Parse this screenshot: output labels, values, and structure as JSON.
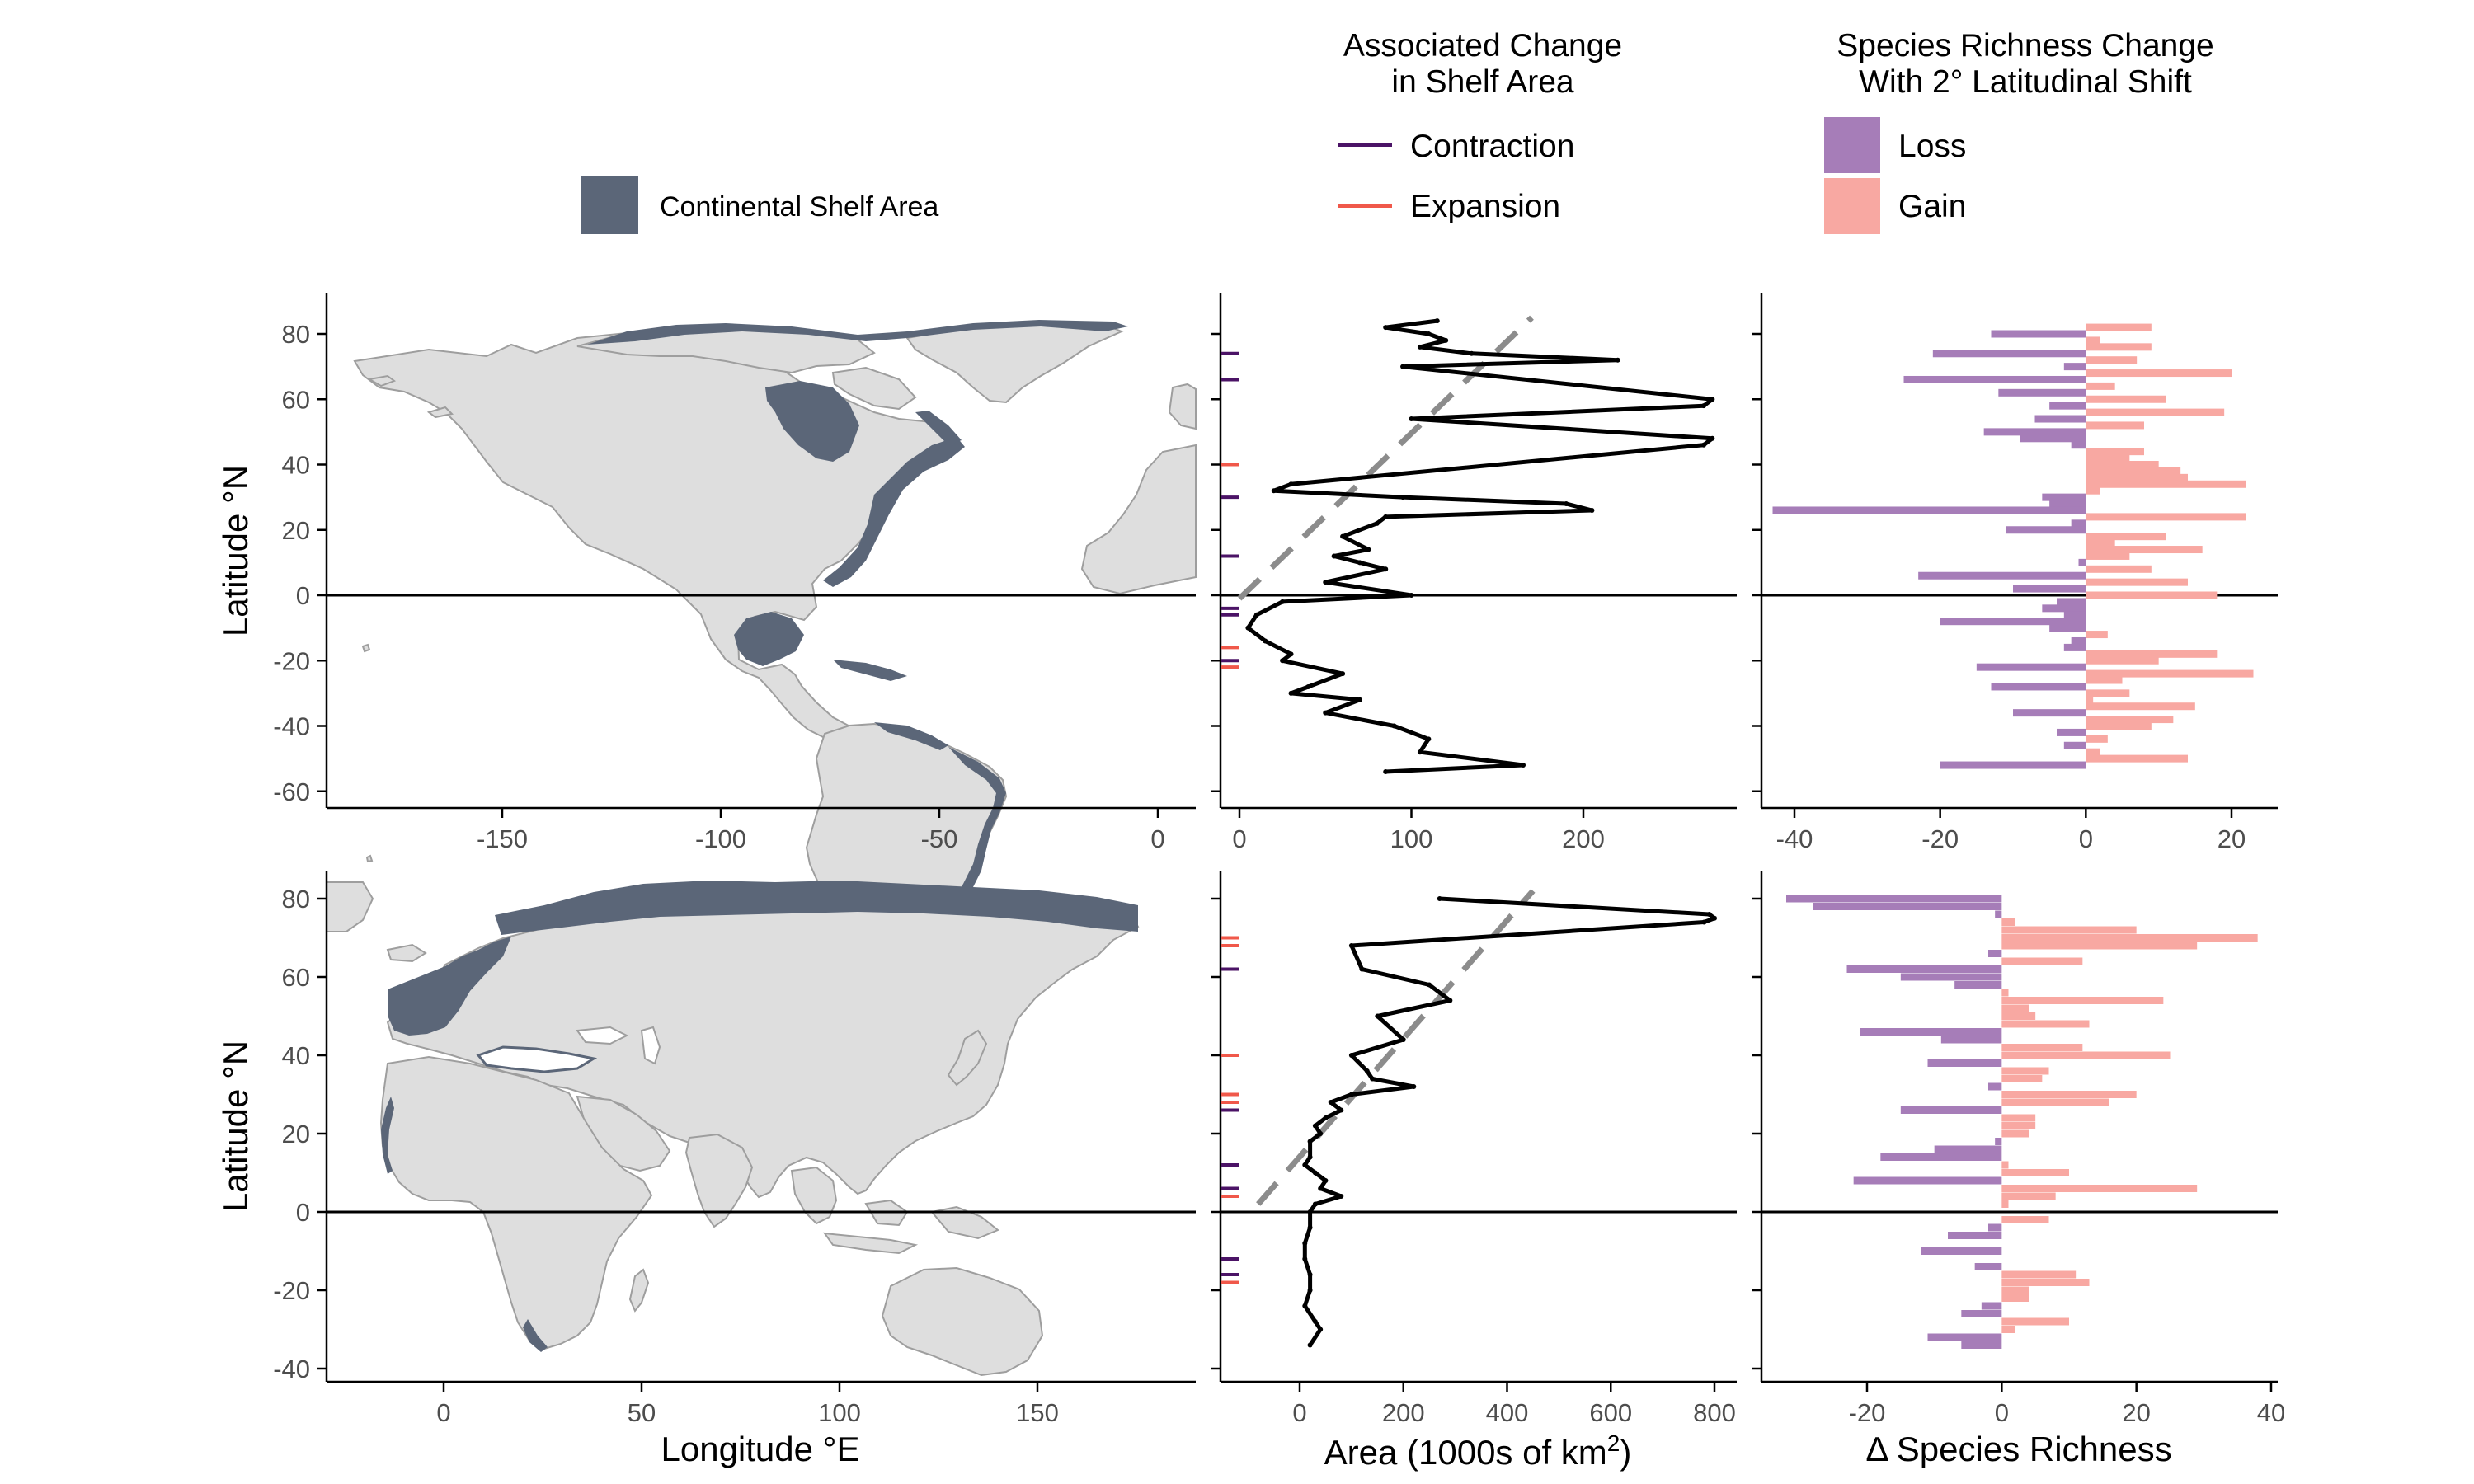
{
  "legend": {
    "shelf_label": "Continental Shelf Area",
    "change_title_line1": "Associated Change",
    "change_title_line2": "in Shelf Area",
    "contraction_label": "Contraction",
    "expansion_label": "Expansion",
    "richness_title_line1": "Species Richness Change",
    "richness_title_line2": "With 2° Latitudinal Shift",
    "loss_label": "Loss",
    "gain_label": "Gain"
  },
  "axes": {
    "latitude_label": "Latitude °N",
    "longitude_label": "Longitude °E",
    "area_label_main": "Area (1000s of km",
    "area_label_sup": "2",
    "area_label_end": ")",
    "richness_label": "Δ Species Richness"
  },
  "colors": {
    "shelf": "#5b6678",
    "land": "#dedede",
    "contraction": "#4b1366",
    "expansion": "#f0584a",
    "loss": "#a67db8",
    "gain": "#f8a8a2",
    "trend": "#8c8c8c"
  },
  "chart_data": [
    {
      "type": "map",
      "panel": "Americas",
      "xlabel": "",
      "ylabel": "Latitude °N",
      "xticks": [
        -150,
        -100,
        -50,
        0
      ],
      "yticks": [
        -60,
        -40,
        -20,
        0,
        20,
        40,
        60,
        80
      ],
      "xlim": [
        -185,
        9
      ],
      "ylim": [
        -62,
        92
      ]
    },
    {
      "type": "line",
      "panel": "Americas area",
      "xticks": [
        0,
        100,
        200
      ],
      "xlim": [
        -8,
        283
      ],
      "ylim": [
        -62,
        92
      ],
      "series": [
        {
          "x": [
            115,
            85,
            110,
            120,
            105,
            135,
            220,
            95,
            275,
            270,
            100,
            275,
            270,
            30,
            20,
            95,
            190,
            205,
            85,
            80,
            60,
            75,
            55,
            70,
            85,
            50,
            100,
            25,
            10,
            5,
            15,
            30,
            25,
            60,
            40,
            30,
            70,
            50,
            90,
            110,
            105,
            165,
            85
          ],
          "y": [
            84,
            82,
            80,
            78,
            76,
            74,
            72,
            70,
            60,
            58,
            54,
            48,
            46,
            34,
            32,
            30,
            28,
            26,
            24,
            22,
            18,
            14,
            12,
            10,
            8,
            4,
            0,
            -2,
            -6,
            -10,
            -14,
            -18,
            -20,
            -24,
            -28,
            -30,
            -32,
            -36,
            -40,
            -44,
            -48,
            -52,
            -54
          ]
        }
      ],
      "trend": {
        "x": [
          0,
          170
        ],
        "y": [
          -1,
          85
        ]
      }
    },
    {
      "type": "bar",
      "panel": "Americas richness",
      "xticks": [
        -40,
        -20,
        0,
        20
      ],
      "xlim": [
        -46,
        26
      ],
      "ylim": [
        -62,
        92
      ],
      "lat": [
        82,
        80,
        78,
        76,
        74,
        72,
        70,
        68,
        66,
        64,
        62,
        60,
        58,
        56,
        54,
        52,
        50,
        48,
        46,
        44,
        42,
        40,
        38,
        36,
        34,
        32,
        30,
        28,
        26,
        24,
        22,
        20,
        18,
        16,
        14,
        12,
        10,
        8,
        6,
        4,
        2,
        0,
        -2,
        -4,
        -6,
        -8,
        -10,
        -12,
        -14,
        -16,
        -18,
        -20,
        -22,
        -24,
        -26,
        -28,
        -30,
        -32,
        -34,
        -36,
        -38,
        -40,
        -42,
        -44,
        -46,
        -48,
        -50,
        -52,
        -54
      ],
      "values": [
        9,
        -13,
        2,
        9,
        -21,
        7,
        -3,
        20,
        -25,
        4,
        -12,
        11,
        -5,
        19,
        -7,
        8,
        -14,
        -9,
        -2,
        8,
        6,
        10,
        13,
        14,
        22,
        2,
        -6,
        -5,
        -43,
        22,
        -2,
        -11,
        11,
        4,
        16,
        6,
        -1,
        9,
        -23,
        14,
        -10,
        18,
        -4,
        -6,
        -3,
        -20,
        -5,
        3,
        -2,
        -3,
        18,
        10,
        -15,
        23,
        5,
        -13,
        6,
        1,
        15,
        -10,
        12,
        9,
        -4,
        3,
        -3,
        2,
        14,
        -20,
        0
      ]
    },
    {
      "type": "map",
      "panel": "Eurasia/Africa",
      "xlabel": "Longitude °E",
      "ylabel": "Latitude °N",
      "xticks": [
        0,
        50,
        100,
        150
      ],
      "xlim": [
        -30,
        190
      ],
      "ylim": [
        -40,
        87
      ],
      "yticks": [
        -40,
        -20,
        0,
        20,
        40,
        60,
        80
      ]
    },
    {
      "type": "line",
      "panel": "Eurasia/Africa area",
      "xlabel": "Area (1000s of km2)",
      "xticks": [
        0,
        200,
        400,
        600,
        800
      ],
      "xlim": [
        -30,
        840
      ],
      "ylim": [
        -40,
        87
      ],
      "series": [
        {
          "x": [
            270,
            790,
            800,
            780,
            100,
            120,
            250,
            290,
            150,
            200,
            100,
            130,
            140,
            220,
            100,
            60,
            80,
            50,
            30,
            40,
            20,
            20,
            10,
            30,
            50,
            40,
            80,
            30,
            20,
            20,
            10,
            10,
            20,
            20,
            10,
            30,
            40,
            20
          ],
          "y": [
            80,
            76,
            75,
            74,
            68,
            62,
            58,
            54,
            50,
            44,
            40,
            36,
            34,
            32,
            30,
            28,
            26,
            24,
            22,
            20,
            18,
            14,
            12,
            10,
            8,
            6,
            4,
            2,
            0,
            -4,
            -8,
            -12,
            -16,
            -20,
            -24,
            -28,
            -30,
            -34
          ]
        }
      ],
      "trend": {
        "x": [
          -80,
          450
        ],
        "y": [
          2,
          82
        ]
      }
    },
    {
      "type": "bar",
      "panel": "Eurasia/Africa richness",
      "xticks": [
        -20,
        0,
        20,
        40
      ],
      "xlim": [
        -35,
        42
      ],
      "ylim": [
        -40,
        87
      ],
      "lat": [
        80,
        78,
        76,
        74,
        72,
        70,
        68,
        66,
        64,
        62,
        60,
        58,
        56,
        54,
        52,
        50,
        48,
        46,
        44,
        42,
        40,
        38,
        36,
        34,
        32,
        30,
        28,
        26,
        24,
        22,
        20,
        18,
        16,
        14,
        12,
        10,
        8,
        6,
        4,
        2,
        0,
        -2,
        -4,
        -6,
        -8,
        -10,
        -12,
        -14,
        -16,
        -18,
        -20,
        -22,
        -24,
        -26,
        -28,
        -30,
        -32,
        -34
      ],
      "values": [
        -32,
        -28,
        -1,
        2,
        20,
        38,
        29,
        -2,
        12,
        -23,
        -15,
        -7,
        1,
        24,
        4,
        5,
        13,
        -21,
        -9,
        12,
        25,
        -11,
        7,
        6,
        -2,
        20,
        16,
        -15,
        5,
        5,
        4,
        -1,
        -10,
        -18,
        1,
        10,
        -22,
        29,
        8,
        1,
        0,
        7,
        -2,
        -8,
        0,
        -12,
        0,
        -4,
        11,
        13,
        4,
        4,
        -3,
        -6,
        10,
        2,
        -11,
        -6
      ]
    }
  ]
}
